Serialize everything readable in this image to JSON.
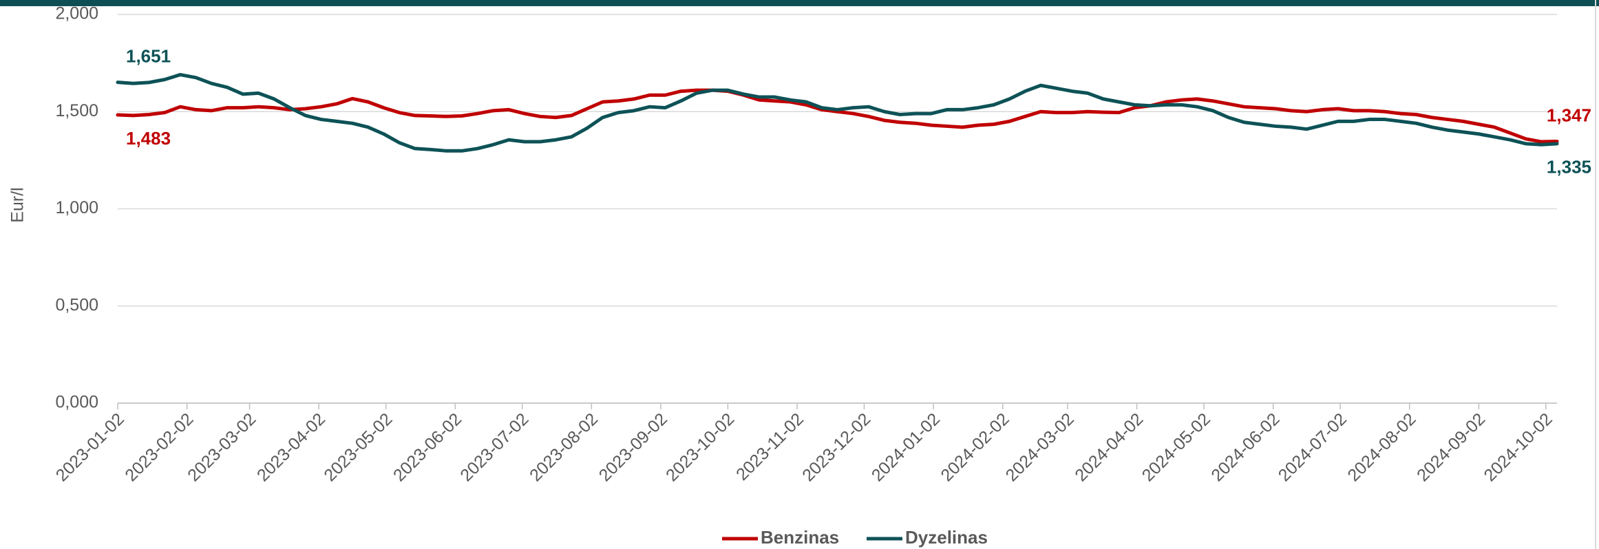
{
  "chart_data": {
    "type": "line",
    "y_label": "Eur/l",
    "ylim": [
      0,
      2
    ],
    "yticks": [
      {
        "value": 0,
        "label": "0,000"
      },
      {
        "value": 0.5,
        "label": "0,500"
      },
      {
        "value": 1,
        "label": "1,000"
      },
      {
        "value": 1.5,
        "label": "1,500"
      },
      {
        "value": 2,
        "label": "2,000"
      }
    ],
    "grid": true,
    "legend": "bottom",
    "xlim": [
      "2023-01-02",
      "2024-10-07"
    ],
    "xticks": [
      "2023-01-02",
      "2023-02-02",
      "2023-03-02",
      "2023-04-02",
      "2023-05-02",
      "2023-06-02",
      "2023-07-02",
      "2023-08-02",
      "2023-09-02",
      "2023-10-02",
      "2023-11-02",
      "2023-12-02",
      "2024-01-02",
      "2024-02-02",
      "2024-03-02",
      "2024-04-02",
      "2024-05-02",
      "2024-06-02",
      "2024-07-02",
      "2024-08-02",
      "2024-09-02",
      "2024-10-02"
    ],
    "x": [
      "2023-01-02",
      "2023-01-09",
      "2023-01-16",
      "2023-01-23",
      "2023-01-30",
      "2023-02-06",
      "2023-02-13",
      "2023-02-20",
      "2023-02-27",
      "2023-03-06",
      "2023-03-13",
      "2023-03-20",
      "2023-03-27",
      "2023-04-03",
      "2023-04-10",
      "2023-04-17",
      "2023-04-24",
      "2023-05-01",
      "2023-05-08",
      "2023-05-15",
      "2023-05-22",
      "2023-05-29",
      "2023-06-05",
      "2023-06-12",
      "2023-06-19",
      "2023-06-26",
      "2023-07-03",
      "2023-07-10",
      "2023-07-17",
      "2023-07-24",
      "2023-07-31",
      "2023-08-07",
      "2023-08-14",
      "2023-08-21",
      "2023-08-28",
      "2023-09-04",
      "2023-09-11",
      "2023-09-18",
      "2023-09-25",
      "2023-10-02",
      "2023-10-09",
      "2023-10-16",
      "2023-10-23",
      "2023-10-30",
      "2023-11-06",
      "2023-11-13",
      "2023-11-20",
      "2023-11-27",
      "2023-12-04",
      "2023-12-11",
      "2023-12-18",
      "2023-12-25",
      "2024-01-01",
      "2024-01-08",
      "2024-01-15",
      "2024-01-22",
      "2024-01-29",
      "2024-02-05",
      "2024-02-12",
      "2024-02-19",
      "2024-02-26",
      "2024-03-04",
      "2024-03-11",
      "2024-03-18",
      "2024-03-25",
      "2024-04-01",
      "2024-04-08",
      "2024-04-15",
      "2024-04-22",
      "2024-04-29",
      "2024-05-06",
      "2024-05-13",
      "2024-05-20",
      "2024-05-27",
      "2024-06-03",
      "2024-06-10",
      "2024-06-17",
      "2024-06-24",
      "2024-07-01",
      "2024-07-08",
      "2024-07-15",
      "2024-07-22",
      "2024-07-29",
      "2024-08-05",
      "2024-08-12",
      "2024-08-19",
      "2024-08-26",
      "2024-09-02",
      "2024-09-09",
      "2024-09-16",
      "2024-09-23",
      "2024-09-30",
      "2024-10-07"
    ],
    "series": [
      {
        "name": "Benzinas",
        "color": "#c00000",
        "values": [
          1.483,
          1.48,
          1.485,
          1.495,
          1.525,
          1.51,
          1.505,
          1.52,
          1.52,
          1.525,
          1.52,
          1.51,
          1.515,
          1.525,
          1.54,
          1.567,
          1.55,
          1.52,
          1.495,
          1.48,
          1.478,
          1.475,
          1.478,
          1.49,
          1.505,
          1.51,
          1.49,
          1.475,
          1.47,
          1.48,
          1.515,
          1.55,
          1.555,
          1.565,
          1.585,
          1.585,
          1.605,
          1.61,
          1.61,
          1.605,
          1.585,
          1.56,
          1.555,
          1.55,
          1.535,
          1.51,
          1.5,
          1.49,
          1.475,
          1.455,
          1.445,
          1.44,
          1.43,
          1.425,
          1.42,
          1.43,
          1.435,
          1.45,
          1.475,
          1.5,
          1.495,
          1.495,
          1.5,
          1.497,
          1.495,
          1.52,
          1.53,
          1.55,
          1.56,
          1.565,
          1.555,
          1.54,
          1.525,
          1.52,
          1.515,
          1.505,
          1.5,
          1.51,
          1.515,
          1.505,
          1.505,
          1.5,
          1.49,
          1.485,
          1.47,
          1.46,
          1.45,
          1.435,
          1.42,
          1.39,
          1.36,
          1.345,
          1.347
        ],
        "value_labels": [
          "1,483",
          null,
          null,
          null,
          null,
          null,
          null,
          null,
          null,
          null,
          null,
          null,
          null,
          null,
          null,
          null,
          null,
          null,
          null,
          null,
          null,
          null,
          null,
          null,
          null,
          null,
          null,
          null,
          null,
          null,
          null,
          null,
          null,
          null,
          null,
          null,
          null,
          null,
          null,
          null,
          null,
          null,
          null,
          null,
          null,
          null,
          null,
          null,
          null,
          null,
          null,
          null,
          null,
          null,
          null,
          null,
          null,
          null,
          null,
          null,
          null,
          null,
          null,
          null,
          null,
          null,
          null,
          null,
          null,
          null,
          null,
          null,
          null,
          null,
          null,
          null,
          null,
          null,
          null,
          null,
          null,
          null,
          null,
          null,
          null,
          null,
          null,
          null,
          null,
          null,
          null,
          null,
          "1,347"
        ]
      },
      {
        "name": "Dyzelinas",
        "color": "#0d5257",
        "values": [
          1.651,
          1.645,
          1.65,
          1.665,
          1.69,
          1.675,
          1.645,
          1.625,
          1.59,
          1.595,
          1.565,
          1.52,
          1.48,
          1.46,
          1.45,
          1.44,
          1.42,
          1.385,
          1.34,
          1.31,
          1.305,
          1.298,
          1.298,
          1.31,
          1.33,
          1.355,
          1.345,
          1.345,
          1.355,
          1.37,
          1.415,
          1.47,
          1.495,
          1.505,
          1.525,
          1.52,
          1.555,
          1.595,
          1.61,
          1.61,
          1.59,
          1.575,
          1.575,
          1.56,
          1.55,
          1.52,
          1.51,
          1.52,
          1.525,
          1.5,
          1.485,
          1.49,
          1.49,
          1.51,
          1.51,
          1.52,
          1.535,
          1.565,
          1.605,
          1.635,
          1.62,
          1.605,
          1.595,
          1.565,
          1.55,
          1.535,
          1.53,
          1.535,
          1.535,
          1.525,
          1.505,
          1.47,
          1.445,
          1.435,
          1.425,
          1.42,
          1.41,
          1.43,
          1.45,
          1.45,
          1.46,
          1.46,
          1.45,
          1.44,
          1.42,
          1.405,
          1.395,
          1.385,
          1.37,
          1.355,
          1.335,
          1.33,
          1.335
        ],
        "value_labels": [
          "1,651",
          null,
          null,
          null,
          null,
          null,
          null,
          null,
          null,
          null,
          null,
          null,
          null,
          null,
          null,
          null,
          null,
          null,
          null,
          null,
          null,
          null,
          null,
          null,
          null,
          null,
          null,
          null,
          null,
          null,
          null,
          null,
          null,
          null,
          null,
          null,
          null,
          null,
          null,
          null,
          null,
          null,
          null,
          null,
          null,
          null,
          null,
          null,
          null,
          null,
          null,
          null,
          null,
          null,
          null,
          null,
          null,
          null,
          null,
          null,
          null,
          null,
          null,
          null,
          null,
          null,
          null,
          null,
          null,
          null,
          null,
          null,
          null,
          null,
          null,
          null,
          null,
          null,
          null,
          null,
          null,
          null,
          null,
          null,
          null,
          null,
          null,
          null,
          null,
          null,
          null,
          null,
          "1,335"
        ]
      }
    ]
  }
}
